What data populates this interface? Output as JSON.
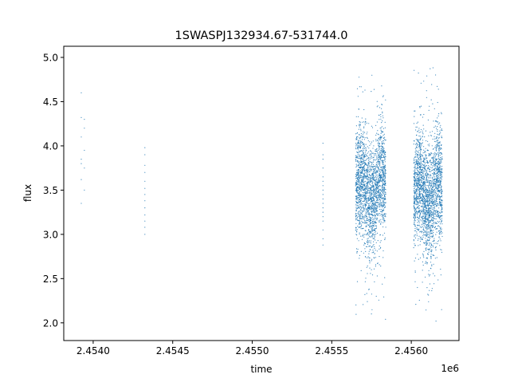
{
  "chart_data": {
    "type": "scatter",
    "title": "1SWASPJ132934.67-531744.0",
    "xlabel": "time",
    "ylabel": "flux",
    "x_offset_label": "1e6",
    "xlim": [
      2453815,
      2456300
    ],
    "ylim": [
      1.8,
      5.126
    ],
    "x_ticks": [
      2454000,
      2454500,
      2455000,
      2455500,
      2456000
    ],
    "x_tick_labels": [
      "2.4540",
      "2.4545",
      "2.4550",
      "2.4555",
      "2.4560"
    ],
    "y_ticks": [
      2.0,
      2.5,
      3.0,
      3.5,
      4.0,
      4.5,
      5.0
    ],
    "y_tick_labels": [
      "2.0",
      "2.5",
      "3.0",
      "3.5",
      "4.0",
      "4.5",
      "5.0"
    ],
    "grid": false,
    "legend": "none",
    "color": "#1f77b4",
    "sparse_points": [
      {
        "x": 2453925,
        "y": 4.6
      },
      {
        "x": 2453925,
        "y": 4.32
      },
      {
        "x": 2453945,
        "y": 4.3
      },
      {
        "x": 2453945,
        "y": 4.2
      },
      {
        "x": 2453925,
        "y": 4.1
      },
      {
        "x": 2453945,
        "y": 3.95
      },
      {
        "x": 2453925,
        "y": 3.85
      },
      {
        "x": 2453925,
        "y": 3.8
      },
      {
        "x": 2453945,
        "y": 3.75
      },
      {
        "x": 2453925,
        "y": 3.62
      },
      {
        "x": 2453945,
        "y": 3.5
      },
      {
        "x": 2453925,
        "y": 3.35
      },
      {
        "x": 2454325,
        "y": 3.98
      },
      {
        "x": 2454325,
        "y": 3.9
      },
      {
        "x": 2454325,
        "y": 3.78
      },
      {
        "x": 2454325,
        "y": 3.7
      },
      {
        "x": 2454325,
        "y": 3.6
      },
      {
        "x": 2454325,
        "y": 3.52
      },
      {
        "x": 2454325,
        "y": 3.45
      },
      {
        "x": 2454325,
        "y": 3.38
      },
      {
        "x": 2454325,
        "y": 3.3
      },
      {
        "x": 2454325,
        "y": 3.22
      },
      {
        "x": 2454325,
        "y": 3.15
      },
      {
        "x": 2454325,
        "y": 3.08
      },
      {
        "x": 2454325,
        "y": 3.0
      },
      {
        "x": 2455445,
        "y": 4.03
      },
      {
        "x": 2455445,
        "y": 3.9
      },
      {
        "x": 2455445,
        "y": 3.85
      },
      {
        "x": 2455445,
        "y": 3.75
      },
      {
        "x": 2455445,
        "y": 3.65
      },
      {
        "x": 2455445,
        "y": 3.6
      },
      {
        "x": 2455445,
        "y": 3.55
      },
      {
        "x": 2455445,
        "y": 3.5
      },
      {
        "x": 2455445,
        "y": 3.45
      },
      {
        "x": 2455445,
        "y": 3.4
      },
      {
        "x": 2455445,
        "y": 3.35
      },
      {
        "x": 2455445,
        "y": 3.3
      },
      {
        "x": 2455445,
        "y": 3.25
      },
      {
        "x": 2455445,
        "y": 3.2
      },
      {
        "x": 2455445,
        "y": 3.15
      },
      {
        "x": 2455445,
        "y": 3.05
      },
      {
        "x": 2455445,
        "y": 2.95
      },
      {
        "x": 2455445,
        "y": 2.88
      }
    ],
    "dense_clusters": [
      {
        "x_range": [
          2455650,
          2455840
        ],
        "y_center": 3.5,
        "y_spread": 0.3,
        "y_range": [
          2.0,
          4.97
        ],
        "count": 2200
      },
      {
        "x_range": [
          2456015,
          2456195
        ],
        "y_center": 3.45,
        "y_spread": 0.3,
        "y_range": [
          1.95,
          4.98
        ],
        "count": 2200
      }
    ]
  }
}
